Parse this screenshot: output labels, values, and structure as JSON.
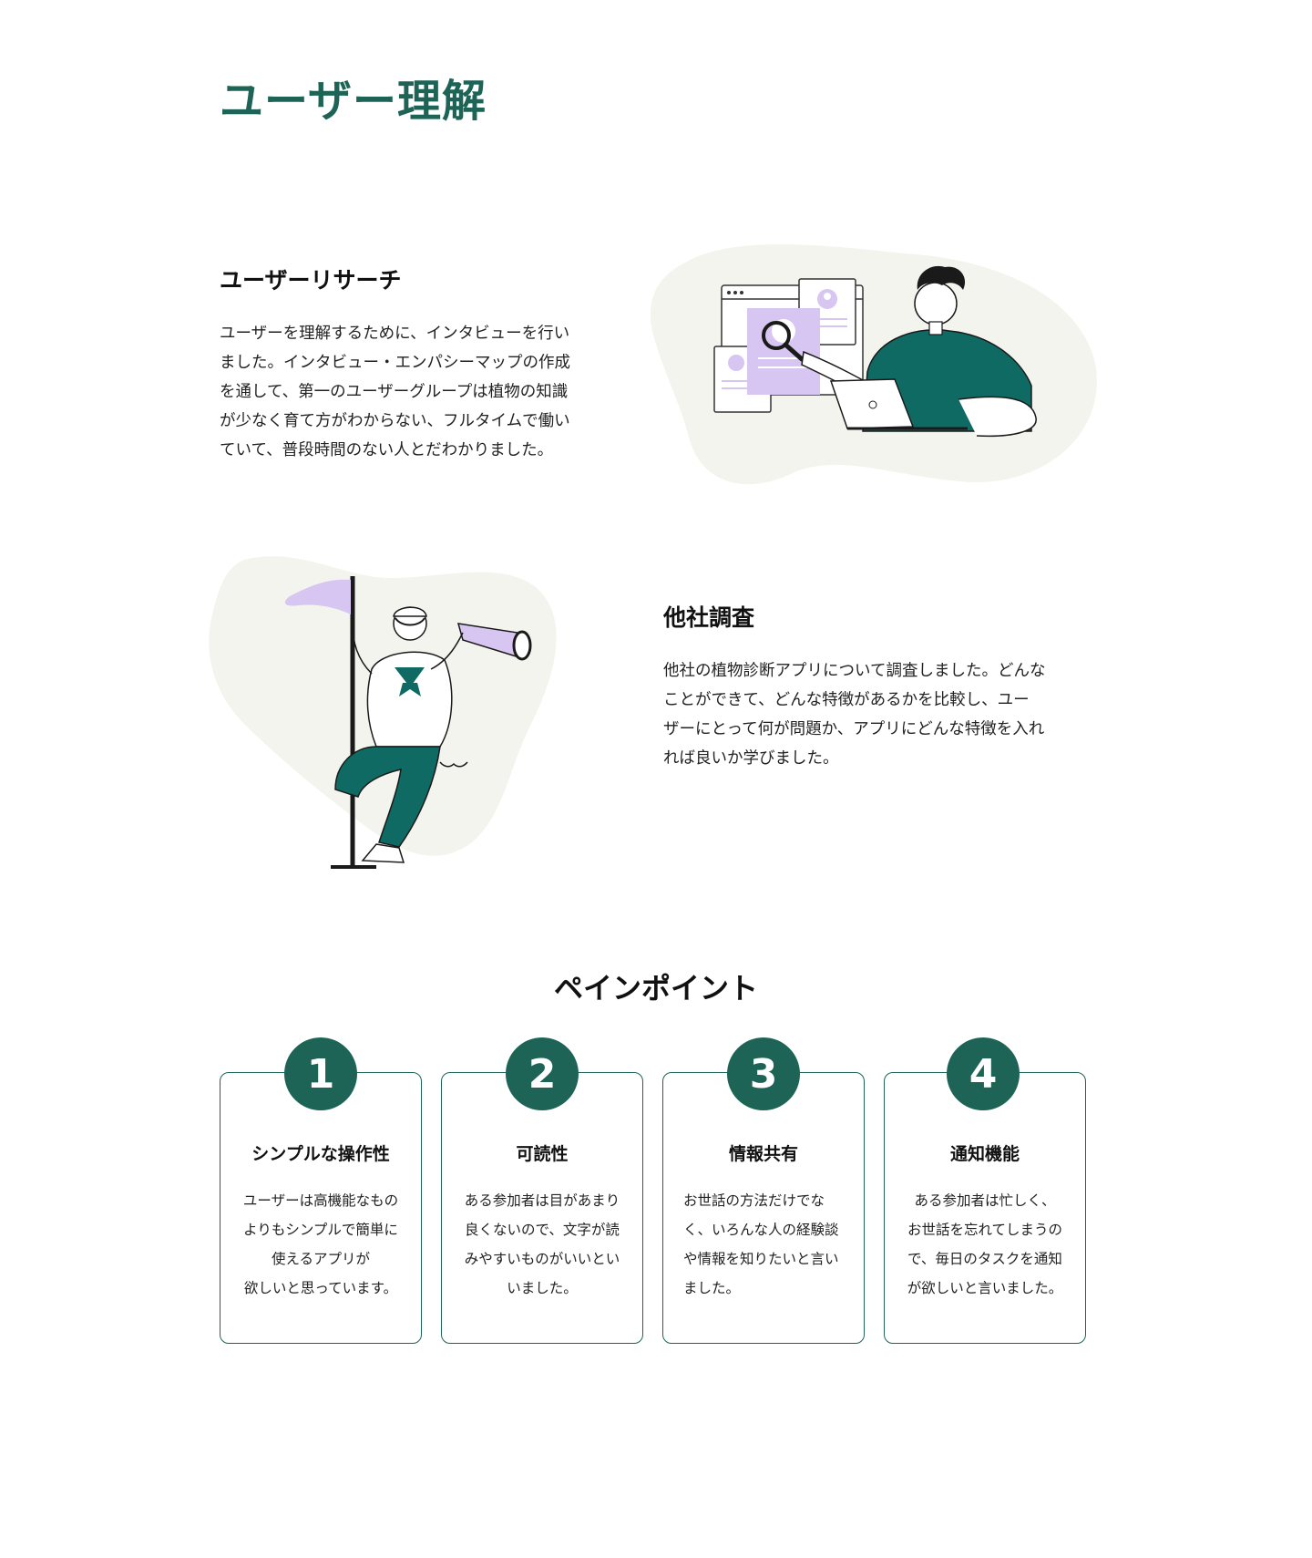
{
  "page": {
    "title": "ユーザー理解"
  },
  "research": {
    "title": "ユーザーリサーチ",
    "body": "ユーザーを理解するために、インタビューを行い\nました。インタビュー・エンパシーマップの作成\nを通して、第一のユーザーグループは植物の知識\nが少なく育て方がわからない、フルタイムで働い\nていて、普段時間のない人とだわかりました。"
  },
  "competitor": {
    "title": "他社調査",
    "body": "他社の植物診断アプリについて調査しました。どんな\nことができて、どんな特徴があるかを比較し、ユー\nザーにとって何が問題か、アプリにどんな特徴を入れ\nれば良いか学びました。"
  },
  "painpoints": {
    "title": "ペインポイント",
    "items": [
      {
        "number": "1",
        "title": "シンプルな操作性",
        "body": "ユーザーは高機能なもの\nよりもシンプルで簡単に\n使えるアプリが\n欲しいと思っています。"
      },
      {
        "number": "2",
        "title": "可読性",
        "body": "ある参加者は目があまり\n良くないので、文字が読\nみやすいものがいいとい\nいました。"
      },
      {
        "number": "3",
        "title": "情報共有",
        "body": "お世話の方法だけでな\nく、いろんな人の経験談\nや情報を知りたいと言い\nました。"
      },
      {
        "number": "4",
        "title": "通知機能",
        "body": "ある参加者は忙しく、\nお世話を忘れてしまうの\nで、毎日のタスクを通知\nが欲しいと言いました。"
      }
    ]
  },
  "colors": {
    "accent": "#1d6456",
    "lavender": "#d7c6f2",
    "blob": "#f4f4ef",
    "text": "#1a1a1a"
  }
}
